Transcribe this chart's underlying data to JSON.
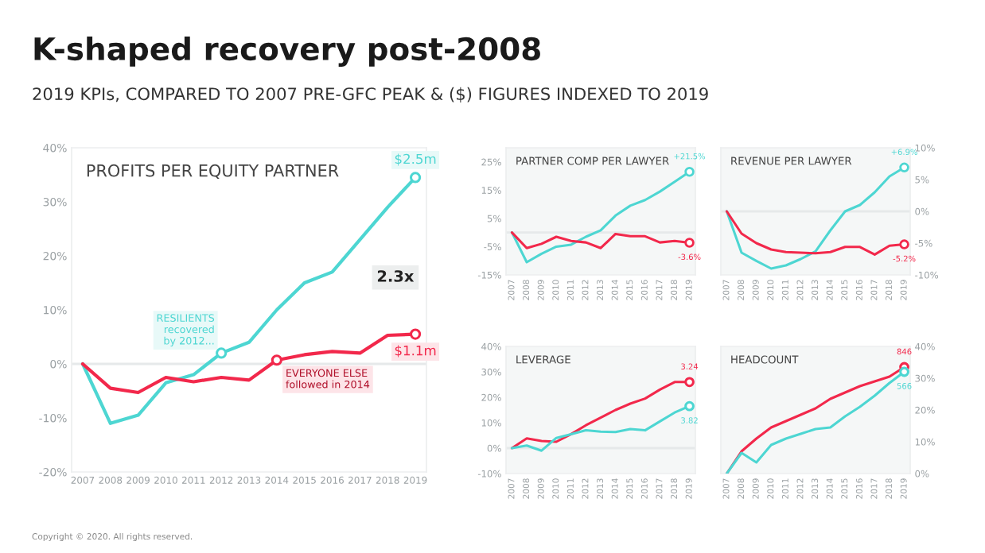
{
  "chart_data": [
    {
      "type": "line",
      "title": "K-shaped recovery post-2008",
      "subtitle": "2019 KPIs, COMPARED TO 2007 PRE-GFC PEAK & ($) FIGURES INDEXED TO 2019",
      "x": [
        2007,
        2008,
        2009,
        2010,
        2011,
        2012,
        2013,
        2014,
        2015,
        2016,
        2017,
        2018,
        2019
      ],
      "series": [
        {
          "color": "#4dd6d2",
          "values": [
            0,
            -11,
            -9.5,
            -3.5,
            -2,
            2,
            4,
            10,
            15,
            17,
            23,
            29,
            34.5
          ]
        },
        {
          "color": "#f2284b",
          "values": [
            0,
            -4.5,
            -5.3,
            -2.5,
            -3.3,
            -2.5,
            -3,
            0.7,
            1.7,
            2.3,
            2,
            5.3,
            5.5
          ]
        }
      ],
      "xlim": [
        2006.6,
        2019.4
      ],
      "xticks": [
        2007,
        2008,
        2009,
        2010,
        2011,
        2012,
        2013,
        2014,
        2015,
        2016,
        2017,
        2018,
        2019
      ],
      "ylim": [
        -20,
        40
      ],
      "yticks": [
        {
          "value": -20,
          "label": "-20%"
        },
        {
          "value": -10,
          "label": "-10%"
        },
        {
          "value": 0,
          "label": "0%"
        },
        {
          "value": 10,
          "label": "10%"
        },
        {
          "value": 20,
          "label": "20%"
        },
        {
          "value": 30,
          "label": "30%"
        },
        {
          "value": 40,
          "label": "40%"
        }
      ],
      "ref_lines": [
        {
          "axis": "y",
          "value": 0,
          "color": "#e6e9ea"
        }
      ],
      "grid": false,
      "legend": false,
      "annotations": [
        "PROFITS PER EQUITY PARTNER",
        {
          "text": "$2.5m",
          "x": 2019,
          "y": 34.5
        },
        {
          "text": "$1.1m",
          "x": 2019,
          "y": 5.5
        },
        {
          "text": "RESILIENTS\nrecovered\nby 2012...",
          "x": 2012,
          "y": 2
        },
        {
          "text": "EVERYONE ELSE\nfollowed in 2014",
          "x": 2014,
          "y": 0.7
        },
        "2.3x",
        "Copyright © 2020. All rights reserved."
      ]
    },
    {
      "type": "line",
      "x": [
        2007,
        2008,
        2009,
        2010,
        2011,
        2012,
        2013,
        2014,
        2015,
        2016,
        2017,
        2018,
        2019
      ],
      "series": [
        {
          "color": "#4dd6d2",
          "values": [
            0,
            -10.5,
            -7.5,
            -5,
            -4.3,
            -1.5,
            0.8,
            6,
            9.5,
            11.5,
            14.5,
            18,
            21.5
          ],
          "value_labels": [
            null,
            null,
            null,
            null,
            null,
            null,
            null,
            null,
            null,
            null,
            null,
            null,
            "+21.5%"
          ]
        },
        {
          "color": "#f2284b",
          "values": [
            0,
            -5.5,
            -4,
            -1.5,
            -3,
            -3.5,
            -5.5,
            -0.5,
            -1.3,
            -1.3,
            -3.5,
            -3,
            -3.6
          ],
          "value_labels": [
            null,
            null,
            null,
            null,
            null,
            null,
            null,
            null,
            null,
            null,
            null,
            null,
            "-3.6%"
          ]
        }
      ],
      "xlim": [
        2006.6,
        2019.4
      ],
      "xticks": [
        2007,
        2008,
        2009,
        2010,
        2011,
        2012,
        2013,
        2014,
        2015,
        2016,
        2017,
        2018,
        2019
      ],
      "ylim": [
        -15,
        30
      ],
      "yticks": [
        {
          "value": -15,
          "label": "-15%"
        },
        {
          "value": -5,
          "label": "-5%"
        },
        {
          "value": 5,
          "label": "5%"
        },
        {
          "value": 15,
          "label": "15%"
        },
        {
          "value": 25,
          "label": "25%"
        }
      ],
      "ref_lines": [
        {
          "axis": "y",
          "value": 0,
          "color": "#e6e9ea"
        }
      ],
      "grid": false,
      "legend": false,
      "annotations": [
        "PARTNER COMP PER LAWYER"
      ]
    },
    {
      "type": "line",
      "x": [
        2007,
        2008,
        2009,
        2010,
        2011,
        2012,
        2013,
        2014,
        2015,
        2016,
        2017,
        2018,
        2019
      ],
      "series": [
        {
          "color": "#4dd6d2",
          "values": [
            0,
            -6.5,
            -7.8,
            -9,
            -8.5,
            -7.5,
            -6.3,
            -3,
            0,
            1,
            3,
            5.5,
            6.9
          ],
          "value_labels": [
            null,
            null,
            null,
            null,
            null,
            null,
            null,
            null,
            null,
            null,
            null,
            null,
            "+6.9%"
          ]
        },
        {
          "color": "#f2284b",
          "values": [
            0,
            -3.5,
            -5,
            -6,
            -6.4,
            -6.5,
            -6.6,
            -6.4,
            -5.6,
            -5.6,
            -6.8,
            -5.4,
            -5.2
          ],
          "value_labels": [
            null,
            null,
            null,
            null,
            null,
            null,
            null,
            null,
            null,
            null,
            null,
            null,
            "-5.2%"
          ]
        }
      ],
      "xlim": [
        2006.6,
        2019.4
      ],
      "xticks": [
        2007,
        2008,
        2009,
        2010,
        2011,
        2012,
        2013,
        2014,
        2015,
        2016,
        2017,
        2018,
        2019
      ],
      "ylim": [
        -10,
        10
      ],
      "yticks": [
        {
          "value": -10,
          "label": "-10%"
        },
        {
          "value": -5,
          "label": "-5%"
        },
        {
          "value": 0,
          "label": "0%"
        },
        {
          "value": 5,
          "label": "5%"
        },
        {
          "value": 10,
          "label": "10%"
        }
      ],
      "ref_lines": [
        {
          "axis": "y",
          "value": 0,
          "color": "#e6e9ea"
        }
      ],
      "grid": false,
      "legend": false,
      "annotations": [
        "REVENUE PER LAWYER"
      ]
    },
    {
      "type": "line",
      "x": [
        2007,
        2008,
        2009,
        2010,
        2011,
        2012,
        2013,
        2014,
        2015,
        2016,
        2017,
        2018,
        2019
      ],
      "series": [
        {
          "color": "#f2284b",
          "values": [
            0,
            3.8,
            2.8,
            2.5,
            5.5,
            9,
            12,
            15,
            17.5,
            19.5,
            23,
            26,
            26
          ]
        },
        {
          "color": "#4dd6d2",
          "values": [
            0,
            1,
            -1,
            4,
            5.5,
            7,
            6.5,
            6.3,
            7.5,
            7,
            10.5,
            14,
            16.5
          ]
        }
      ],
      "xlim": [
        2006.6,
        2019.4
      ],
      "xticks": [
        2007,
        2008,
        2009,
        2010,
        2011,
        2012,
        2013,
        2014,
        2015,
        2016,
        2017,
        2018,
        2019
      ],
      "ylim": [
        -10,
        40
      ],
      "yticks": [
        {
          "value": -10,
          "label": "-10%"
        },
        {
          "value": 0,
          "label": "0%"
        },
        {
          "value": 10,
          "label": "10%"
        },
        {
          "value": 20,
          "label": "20%"
        },
        {
          "value": 30,
          "label": "30%"
        },
        {
          "value": 40,
          "label": "40%"
        }
      ],
      "ref_lines": [
        {
          "axis": "y",
          "value": 0,
          "color": "#e6e9ea"
        }
      ],
      "grid": false,
      "legend": false,
      "annotations": [
        "LEVERAGE",
        {
          "text": "3.24",
          "x": 2019,
          "y": 26
        },
        {
          "text": "3.82",
          "x": 2019,
          "y": 16.5
        }
      ]
    },
    {
      "type": "line",
      "x": [
        2007,
        2008,
        2009,
        2010,
        2011,
        2012,
        2013,
        2014,
        2015,
        2016,
        2017,
        2018,
        2019
      ],
      "series": [
        {
          "color": "#f2284b",
          "values": [
            0,
            7,
            11,
            14.5,
            16.5,
            18.5,
            20.5,
            23.5,
            25.5,
            27.5,
            29,
            30.5,
            33.5
          ]
        },
        {
          "color": "#4dd6d2",
          "values": [
            0,
            6.5,
            3.5,
            9,
            11,
            12.5,
            14,
            14.5,
            18,
            21,
            24.5,
            28.5,
            32
          ]
        }
      ],
      "xlim": [
        2006.6,
        2019.4
      ],
      "xticks": [
        2007,
        2008,
        2009,
        2010,
        2011,
        2012,
        2013,
        2014,
        2015,
        2016,
        2017,
        2018,
        2019
      ],
      "ylim": [
        0,
        40
      ],
      "yticks": [
        {
          "value": 0,
          "label": "0%"
        },
        {
          "value": 10,
          "label": "10%"
        },
        {
          "value": 20,
          "label": "20%"
        },
        {
          "value": 30,
          "label": "30%"
        },
        {
          "value": 40,
          "label": "40%"
        }
      ],
      "grid": false,
      "legend": false,
      "annotations": [
        "HEADCOUNT",
        {
          "text": "846",
          "x": 2019,
          "y": 33.5
        },
        {
          "text": "566",
          "x": 2019,
          "y": 32
        }
      ]
    }
  ]
}
